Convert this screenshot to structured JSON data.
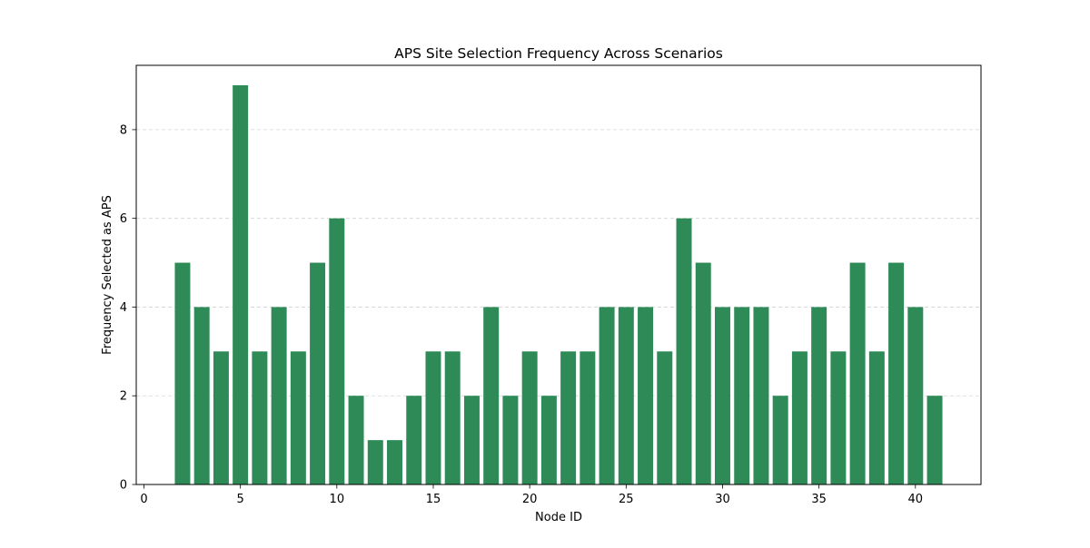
{
  "chart_data": {
    "type": "bar",
    "title": "APS Site Selection Frequency Across Scenarios",
    "xlabel": "Node ID",
    "ylabel": "Frequency Selected as APS",
    "x": [
      2,
      3,
      4,
      5,
      6,
      7,
      8,
      9,
      10,
      11,
      12,
      13,
      14,
      15,
      16,
      17,
      18,
      19,
      20,
      21,
      22,
      23,
      24,
      25,
      26,
      27,
      28,
      29,
      30,
      31,
      32,
      33,
      34,
      35,
      36,
      37,
      38,
      39,
      40,
      41
    ],
    "values": [
      5,
      4,
      3,
      9,
      3,
      4,
      3,
      5,
      6,
      2,
      1,
      1,
      2,
      3,
      3,
      2,
      4,
      2,
      3,
      2,
      3,
      3,
      4,
      4,
      4,
      3,
      6,
      5,
      4,
      4,
      4,
      2,
      3,
      4,
      3,
      5,
      3,
      5,
      4,
      2
    ],
    "xlim": [
      -0.4,
      43.4
    ],
    "ylim": [
      0,
      9.45
    ],
    "xticks": [
      0,
      5,
      10,
      15,
      20,
      25,
      30,
      35,
      40
    ],
    "yticks": [
      0,
      2,
      4,
      6,
      8
    ],
    "grid": "y-dashed",
    "bar_color": "#2e8b57",
    "grid_color": "#d3d3d3"
  }
}
